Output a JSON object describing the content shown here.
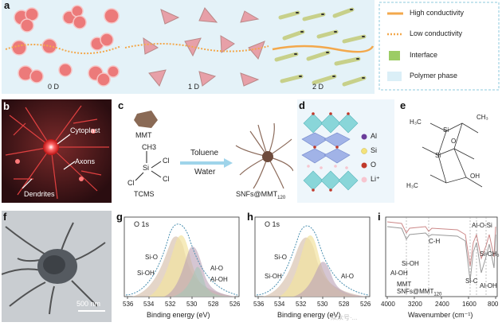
{
  "panel_a": {
    "label": "a",
    "stages": [
      "0 D",
      "1 D",
      "2 D"
    ],
    "legend": [
      {
        "text": "High conductivity",
        "color": "#f3a84c",
        "style": "solid"
      },
      {
        "text": "Low conductivity",
        "color": "#f3a84c",
        "style": "dotted"
      },
      {
        "text": "Interface",
        "color": "#9ccc65",
        "style": "box"
      },
      {
        "text": "Polymer phase",
        "color": "#dbeff7",
        "style": "box"
      }
    ],
    "colors": {
      "background": "#e4f2f8",
      "particle": "#ec7a7a",
      "rod": "#c7d08a",
      "path": "#f3a84c"
    }
  },
  "panel_b": {
    "label": "b",
    "labels": [
      "Cytoplast",
      "Axons",
      "Dendrites"
    ]
  },
  "panel_c": {
    "label": "c",
    "mmt": "MMT",
    "ch3": "CH3",
    "si": "Si",
    "cl_right_top": "Cl",
    "cl_right_bottom": "Cl",
    "cl_left": "Cl",
    "tcms": "TCMS",
    "toluene": "Toluene",
    "water": "Water",
    "product_main": "SNFs@MMT",
    "product_sub": "120"
  },
  "panel_d": {
    "label": "d",
    "legend": [
      {
        "text": "Al",
        "color": "#6a3d9a"
      },
      {
        "text": "Si",
        "color": "#f4e27a"
      },
      {
        "text": "O",
        "color": "#c0392b"
      },
      {
        "text": "Li⁺",
        "color": "#f7c6d0"
      }
    ]
  },
  "panel_e": {
    "label": "e",
    "labels": [
      "H₃C",
      "Si",
      "O",
      "CH₃",
      "OH"
    ]
  },
  "panel_f": {
    "label": "f",
    "scale_bar": "500 nm"
  },
  "panel_g": {
    "label": "g",
    "title": "O 1s",
    "peaks": [
      "Si-O",
      "Si-OH",
      "Al-O",
      "Al-OH"
    ],
    "xlabel": "Binding energy (eV)",
    "xticks": [
      "536",
      "534",
      "532",
      "530",
      "528",
      "526"
    ]
  },
  "panel_h": {
    "label": "h",
    "title": "O 1s",
    "peaks": [
      "Si-O",
      "Si-OH",
      "Al-O"
    ],
    "xlabel": "Binding energy (eV)",
    "xticks": [
      "536",
      "534",
      "532",
      "530",
      "528",
      "526"
    ]
  },
  "panel_i": {
    "label": "i",
    "annotations": [
      "C-H",
      "Si-OH",
      "Al-OH",
      "Si-C",
      "Al-O-Si",
      "Si-CH₃",
      "Al-OH"
    ],
    "series_labels": [
      "MMT",
      "SNFs@MMT"
    ],
    "series_sub": "120",
    "xlabel": "Wavenumber (cm⁻¹)",
    "xticks": [
      "4000",
      "3200",
      "2400",
      "1600",
      "800"
    ]
  },
  "watermark": "众众号·..."
}
